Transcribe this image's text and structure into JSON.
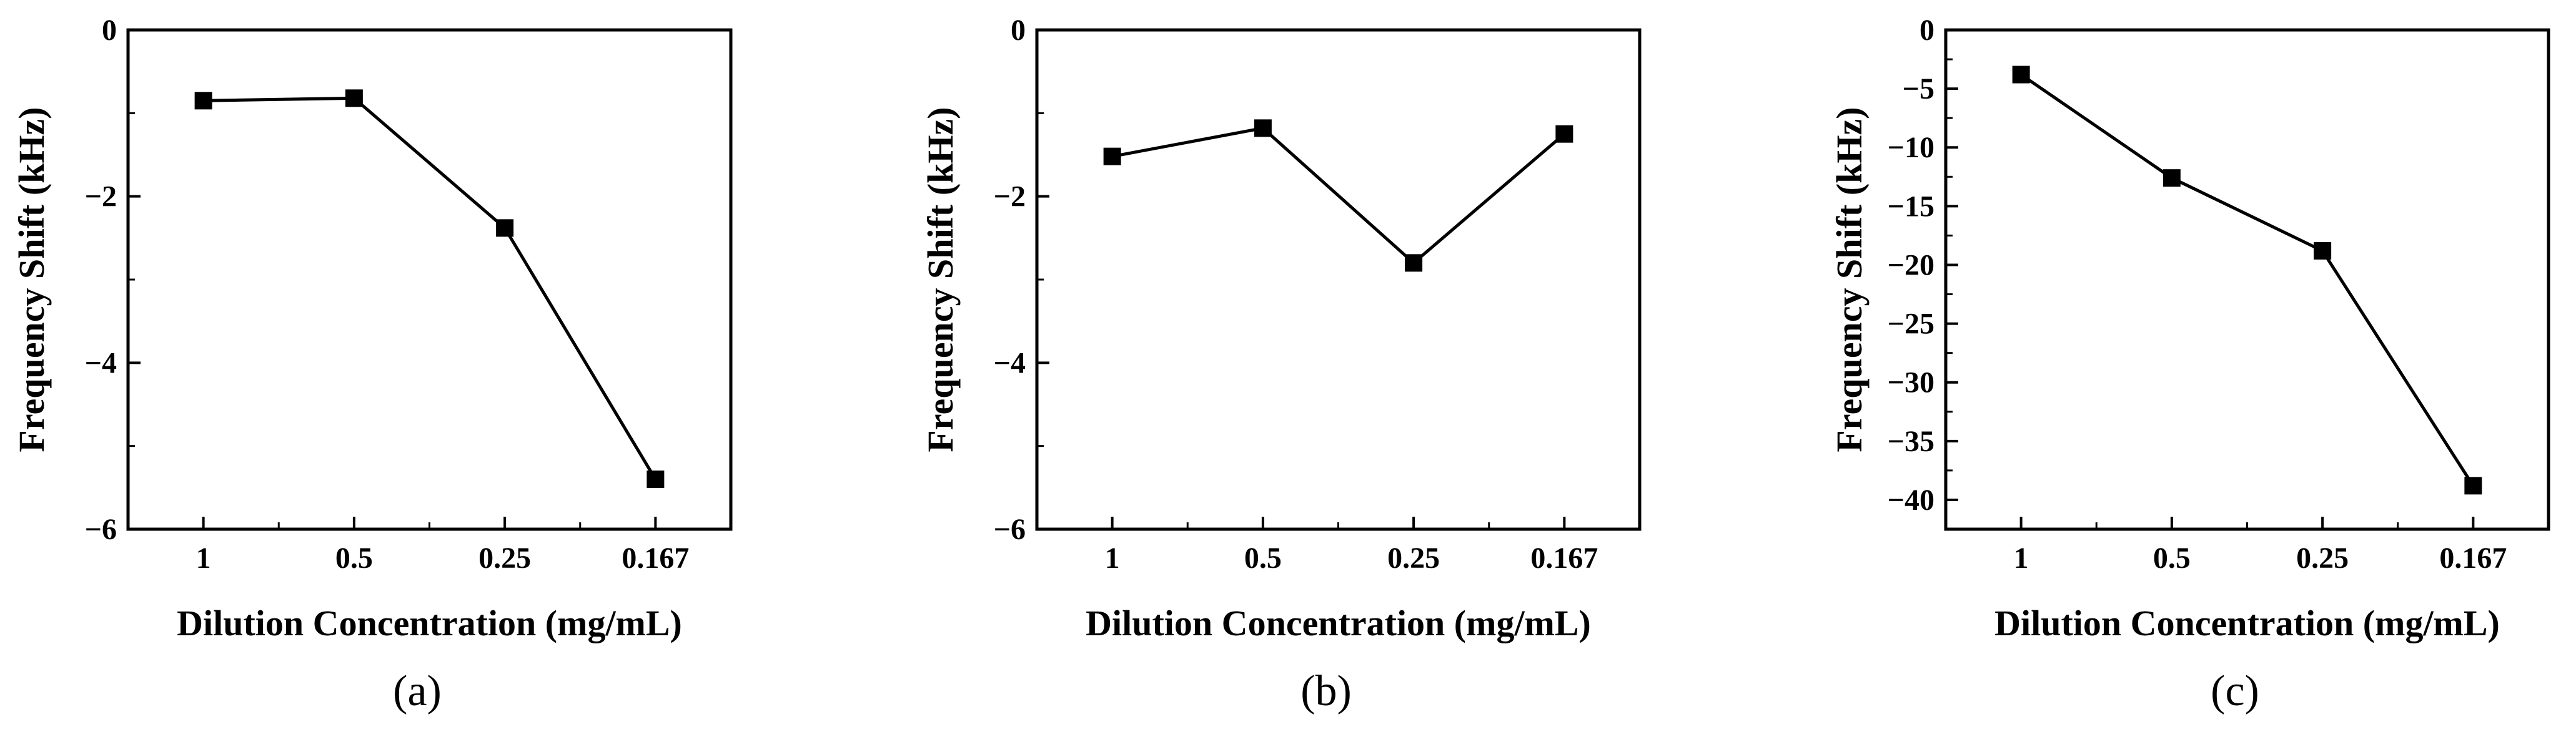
{
  "figure": {
    "panel_labels": [
      "(a)",
      "(b)",
      "(c)"
    ]
  },
  "style": {
    "line_color": "#000000",
    "marker_color": "#000000",
    "axis_color": "#000000",
    "background": "#ffffff"
  },
  "chart_data": [
    {
      "type": "line",
      "panel": "(a)",
      "categories": [
        "1",
        "0.5",
        "0.25",
        "0.167"
      ],
      "series": [
        {
          "name": "Frequency Shift",
          "marker": "square",
          "values": [
            -0.85,
            -0.82,
            -2.38,
            -5.4
          ]
        }
      ],
      "xlabel": "Dilution Concentration (mg/mL)",
      "ylabel": "Frequency Shift (kHz)",
      "ylim": [
        -6,
        0
      ],
      "yticks": [
        0,
        -2,
        -4,
        -6
      ],
      "ytick_labels": [
        "0",
        "−2",
        "−4",
        "−6"
      ],
      "grid": false
    },
    {
      "type": "line",
      "panel": "(b)",
      "categories": [
        "1",
        "0.5",
        "0.25",
        "0.167"
      ],
      "series": [
        {
          "name": "Frequency Shift",
          "marker": "square",
          "values": [
            -1.52,
            -1.18,
            -2.8,
            -1.25
          ]
        }
      ],
      "xlabel": "Dilution Concentration (mg/mL)",
      "ylabel": "Frequency Shift (kHz)",
      "ylim": [
        -6,
        0
      ],
      "yticks": [
        0,
        -2,
        -4,
        -6
      ],
      "ytick_labels": [
        "0",
        "−2",
        "−4",
        "−6"
      ],
      "grid": false
    },
    {
      "type": "line",
      "panel": "(c)",
      "categories": [
        "1",
        "0.5",
        "0.25",
        "0.167"
      ],
      "series": [
        {
          "name": "Frequency Shift",
          "marker": "square",
          "values": [
            -3.8,
            -12.6,
            -18.8,
            -38.8
          ]
        }
      ],
      "xlabel": "Dilution Concentration (mg/mL)",
      "ylabel": "Frequency Shift (kHz)",
      "ylim": [
        -42.5,
        0
      ],
      "yticks": [
        0,
        -5,
        -10,
        -15,
        -20,
        -25,
        -30,
        -35,
        -40
      ],
      "ytick_labels": [
        "0",
        "−5",
        "−10",
        "−15",
        "−20",
        "−25",
        "−30",
        "−35",
        "−40"
      ],
      "grid": false
    }
  ]
}
